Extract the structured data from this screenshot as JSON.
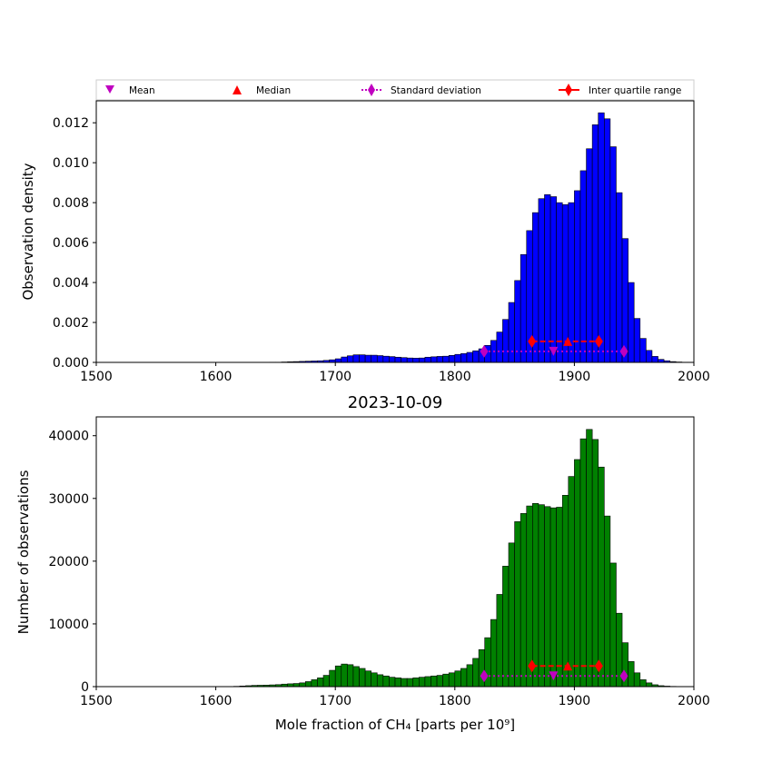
{
  "legend": {
    "mean": "Mean",
    "median": "Median",
    "std": "Standard deviation",
    "iqr": "Inter quartile range"
  },
  "colors": {
    "top_bars": "#0000ff",
    "bottom_bars": "#008000",
    "mean_marker": "#c000c0",
    "std_marker": "#c000c0",
    "median_marker": "#ff0000",
    "iqr_marker": "#ff0000"
  },
  "chart_data": [
    {
      "type": "bar",
      "xlabel": "",
      "ylabel": "Observation density",
      "xlim": [
        1500,
        2000
      ],
      "ylim": [
        0,
        0.0131
      ],
      "x_ticks": [
        "1500",
        "1600",
        "1700",
        "1800",
        "1900",
        "2000"
      ],
      "y_ticks": [
        "0.000",
        "0.002",
        "0.004",
        "0.006",
        "0.008",
        "0.010",
        "0.012"
      ],
      "bin_width": 5,
      "bin_start": 1500,
      "values": [
        0,
        0,
        0,
        0,
        0,
        0,
        0,
        0,
        0,
        0,
        0,
        0,
        0,
        0,
        0,
        0,
        0,
        0,
        0,
        0,
        0,
        0,
        0,
        0,
        0,
        0,
        0,
        0,
        0,
        1e-05,
        1e-05,
        2e-05,
        3e-05,
        4e-05,
        5e-05,
        6e-05,
        7e-05,
        8e-05,
        0.0001,
        0.00013,
        0.00018,
        0.00027,
        0.00033,
        0.00038,
        0.00038,
        0.00036,
        0.00036,
        0.00034,
        0.00031,
        0.00029,
        0.00026,
        0.00024,
        0.00022,
        0.00021,
        0.00022,
        0.00026,
        0.00028,
        0.0003,
        0.00031,
        0.00035,
        0.0004,
        0.00044,
        0.0005,
        0.00058,
        0.00068,
        0.00085,
        0.0011,
        0.00152,
        0.00215,
        0.003,
        0.0041,
        0.0054,
        0.0066,
        0.0075,
        0.0082,
        0.0084,
        0.0083,
        0.008,
        0.0079,
        0.008,
        0.0086,
        0.0096,
        0.0107,
        0.0119,
        0.0125,
        0.0122,
        0.0108,
        0.0085,
        0.0062,
        0.004,
        0.0022,
        0.0012,
        0.0006,
        0.0003,
        0.00015,
        8e-05,
        4e-05,
        2e-05,
        1e-05,
        1e-05
      ],
      "stats": {
        "mean": 1882.5,
        "median": 1894.5,
        "std_range": [
          1824.5,
          1941.5
        ],
        "iqr_range": [
          1864.5,
          1920.5
        ],
        "mean_y": 0.00055,
        "median_y": 0.00105,
        "std_y": 0.00055,
        "iqr_y": 0.00105
      }
    },
    {
      "type": "bar",
      "title": "2023-10-09",
      "xlabel": "Mole fraction of CH₄ [parts per 10⁹]",
      "ylabel": "Number of observations",
      "xlim": [
        1500,
        2000
      ],
      "ylim": [
        0,
        43000
      ],
      "x_ticks": [
        "1500",
        "1600",
        "1700",
        "1800",
        "1900",
        "2000"
      ],
      "y_ticks": [
        "0",
        "10000",
        "20000",
        "30000",
        "40000"
      ],
      "bin_width": 5,
      "bin_start": 1500,
      "values": [
        0,
        0,
        0,
        0,
        0,
        0,
        0,
        0,
        0,
        0,
        0,
        0,
        0,
        0,
        0,
        0,
        0,
        0,
        0,
        0,
        0,
        0,
        0,
        50,
        100,
        150,
        200,
        220,
        240,
        280,
        320,
        400,
        450,
        500,
        600,
        800,
        1100,
        1400,
        1800,
        2600,
        3300,
        3600,
        3500,
        3200,
        2900,
        2500,
        2200,
        1900,
        1700,
        1500,
        1400,
        1300,
        1300,
        1400,
        1500,
        1600,
        1700,
        1800,
        2000,
        2200,
        2500,
        2900,
        3500,
        4500,
        5900,
        7800,
        10700,
        14700,
        19200,
        22900,
        26300,
        27600,
        28800,
        29200,
        29000,
        28700,
        28500,
        28600,
        30500,
        33500,
        36200,
        39500,
        41000,
        39400,
        35000,
        27200,
        19700,
        11700,
        7000,
        4000,
        2200,
        1100,
        600,
        300,
        150,
        80,
        40,
        20,
        10,
        5
      ],
      "stats": {
        "mean": 1882.5,
        "median": 1894.5,
        "std_range": [
          1824.5,
          1941.5
        ],
        "iqr_range": [
          1864.5,
          1920.5
        ],
        "mean_y": 1700,
        "median_y": 3300,
        "std_y": 1700,
        "iqr_y": 3300
      }
    }
  ]
}
